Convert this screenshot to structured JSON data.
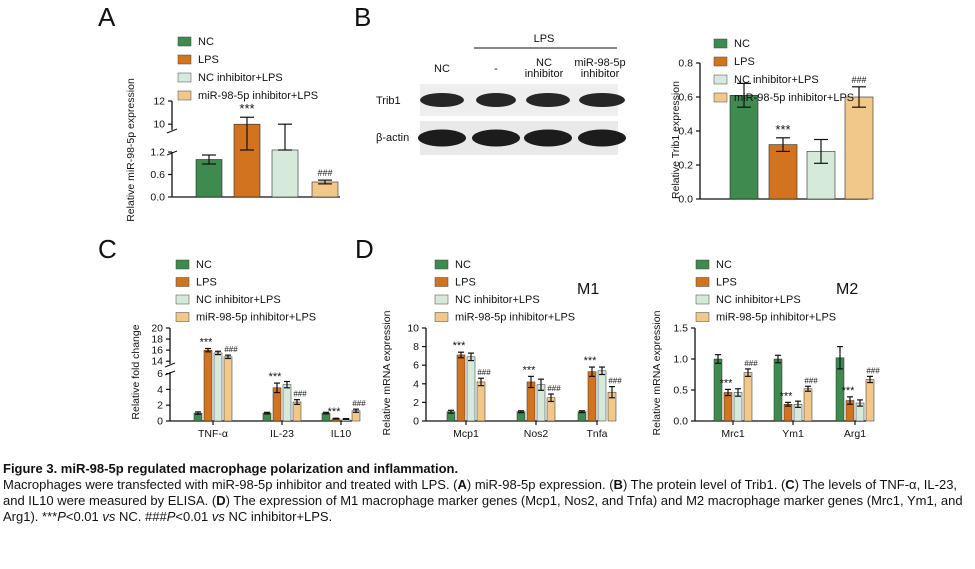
{
  "colors": {
    "NC": "#3e8a4f",
    "LPS": "#d2741f",
    "NC_inhibitor_LPS": "#d6eadc",
    "inhibitor_LPS": "#f1c88a"
  },
  "legend": [
    "NC",
    "LPS",
    "NC inhibitor+LPS",
    "miR-98-5p inhibitor+LPS"
  ],
  "panels": {
    "A": "A",
    "B": "B",
    "C": "C",
    "D": "D",
    "M1": "M1",
    "M2": "M2"
  },
  "blot": {
    "nc": "NC",
    "lps": "LPS",
    "dash": "-",
    "nc_inh_1": "NC",
    "nc_inh_2": "inhibitor",
    "mir_1": "miR-98-5p",
    "mir_2": "inhibitor",
    "trib1": "Trib1",
    "actin": "β-actin"
  },
  "chart_data": [
    {
      "id": "A",
      "type": "bar",
      "ylabel": "Relative miR-98-5p expression",
      "broken_axis": true,
      "lower_ticks": [
        "0.0",
        "0.6",
        "1.2"
      ],
      "upper_ticks": [
        "10",
        "12"
      ],
      "series": [
        {
          "name": "NC",
          "value": 1.0,
          "err": 0.12
        },
        {
          "name": "LPS",
          "value": 10.0,
          "err": 0.6,
          "sig": "***"
        },
        {
          "name": "NC inhibitor+LPS",
          "value": 9.4,
          "err": 0.6
        },
        {
          "name": "miR-98-5p inhibitor+LPS",
          "value": 0.4,
          "err": 0.05,
          "sig": "###"
        }
      ]
    },
    {
      "id": "B",
      "type": "bar",
      "ylabel": "Relative Trib1 expression",
      "ylim": [
        0,
        0.8
      ],
      "ticks": [
        "0.0",
        "0.2",
        "0.4",
        "0.6",
        "0.8"
      ],
      "series": [
        {
          "name": "NC",
          "value": 0.61,
          "err": 0.07
        },
        {
          "name": "LPS",
          "value": 0.32,
          "err": 0.04,
          "sig": "***"
        },
        {
          "name": "NC inhibitor+LPS",
          "value": 0.28,
          "err": 0.07
        },
        {
          "name": "miR-98-5p inhibitor+LPS",
          "value": 0.6,
          "err": 0.06,
          "sig": "###"
        }
      ]
    },
    {
      "id": "C",
      "type": "bar",
      "ylabel": "Relative fold change",
      "broken_axis": true,
      "lower_ticks": [
        "0",
        "2",
        "4",
        "6"
      ],
      "upper_ticks": [
        "14",
        "16",
        "18",
        "20"
      ],
      "categories": [
        "TNF-α",
        "IL-23",
        "IL10"
      ],
      "series": [
        {
          "name": "NC",
          "values": [
            1.0,
            1.0,
            1.0
          ],
          "err": [
            0.15,
            0.1,
            0.1
          ]
        },
        {
          "name": "LPS",
          "values": [
            16.0,
            4.2,
            0.3
          ],
          "err": [
            0.3,
            0.6,
            0.05
          ],
          "sig": [
            "***",
            "***",
            "***"
          ]
        },
        {
          "name": "NC inhibitor+LPS",
          "values": [
            15.5,
            4.6,
            0.25
          ],
          "err": [
            0.3,
            0.4,
            0.05
          ]
        },
        {
          "name": "miR-98-5p inhibitor+LPS",
          "values": [
            14.8,
            2.4,
            1.3
          ],
          "err": [
            0.3,
            0.3,
            0.2
          ],
          "sig": [
            "###",
            "###",
            "###"
          ]
        }
      ]
    },
    {
      "id": "D-M1",
      "type": "bar",
      "ylabel": "Relative mRNA expression",
      "ylim": [
        0,
        10
      ],
      "ticks": [
        "0",
        "2",
        "4",
        "6",
        "8",
        "10"
      ],
      "categories": [
        "Mcp1",
        "Nos2",
        "Tnfa"
      ],
      "series": [
        {
          "name": "NC",
          "values": [
            1.0,
            1.0,
            1.0
          ],
          "err": [
            0.15,
            0.1,
            0.1
          ]
        },
        {
          "name": "LPS",
          "values": [
            7.1,
            4.2,
            5.3
          ],
          "err": [
            0.3,
            0.6,
            0.5
          ],
          "sig": [
            "***",
            "***",
            "***"
          ]
        },
        {
          "name": "NC inhibitor+LPS",
          "values": [
            6.9,
            3.9,
            5.4
          ],
          "err": [
            0.4,
            0.6,
            0.4
          ]
        },
        {
          "name": "miR-98-5p inhibitor+LPS",
          "values": [
            4.2,
            2.5,
            3.1
          ],
          "err": [
            0.4,
            0.4,
            0.6
          ],
          "sig": [
            "###",
            "###",
            "###"
          ]
        }
      ]
    },
    {
      "id": "D-M2",
      "type": "bar",
      "ylabel": "Relative mRNA expression",
      "ylim": [
        0,
        1.5
      ],
      "ticks": [
        "0.0",
        "0.5",
        "1.0",
        "1.5"
      ],
      "categories": [
        "Mrc1",
        "Ym1",
        "Arg1"
      ],
      "series": [
        {
          "name": "NC",
          "values": [
            1.0,
            1.0,
            1.02
          ],
          "err": [
            0.07,
            0.06,
            0.18
          ]
        },
        {
          "name": "LPS",
          "values": [
            0.46,
            0.27,
            0.33
          ],
          "err": [
            0.05,
            0.03,
            0.06
          ],
          "sig": [
            "***",
            "***",
            "***"
          ]
        },
        {
          "name": "NC inhibitor+LPS",
          "values": [
            0.46,
            0.27,
            0.29
          ],
          "err": [
            0.06,
            0.05,
            0.05
          ]
        },
        {
          "name": "miR-98-5p inhibitor+LPS",
          "values": [
            0.78,
            0.52,
            0.67
          ],
          "err": [
            0.06,
            0.04,
            0.05
          ],
          "sig": [
            "###",
            "###",
            "###"
          ]
        }
      ]
    }
  ],
  "caption": {
    "title": "Figure 3. miR-98-5p regulated macrophage polarization and inflammation.",
    "s1": "Macrophages were transfected with miR-98-5p inhibitor and treated with LPS. (",
    "bA": "A",
    "s2": ") miR-98-5p expression. (",
    "bB": "B",
    "s3": ") The protein level of Trib1. (",
    "bC": "C",
    "s4": ") The levels of TNF-α, IL-23, and IL10 were measured by ELISA. (",
    "bD": "D",
    "s5": ") The expression of M1 macrophage marker genes (Mcp1, Nos2, and Tnfa) and M2 macrophage marker genes (Mrc1, Ym1, and Arg1). ***",
    "p1": "P",
    "s6": "<0.01 ",
    "vs1": "vs",
    "s7": " NC. ###",
    "p2": "P",
    "s8": "<0.01 ",
    "vs2": "vs",
    "s9": " NC inhibitor+LPS."
  }
}
